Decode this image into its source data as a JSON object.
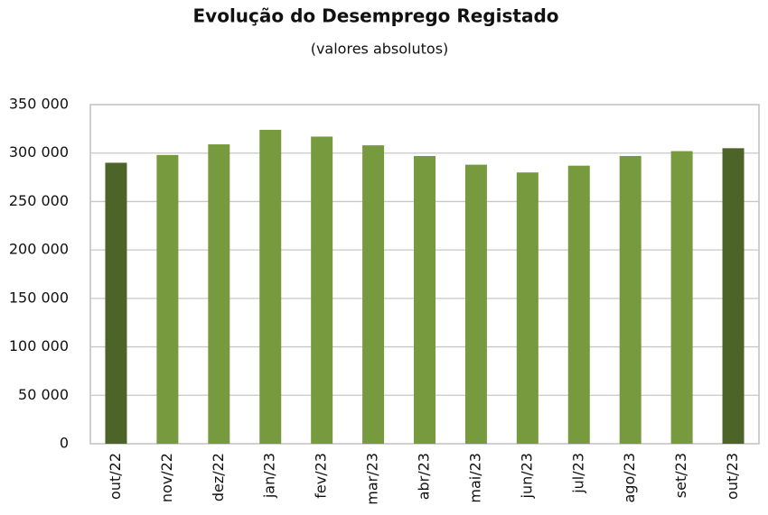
{
  "chart_data": {
    "type": "bar",
    "title": "Evolução do Desemprego Registado",
    "subtitle": "(valores absolutos)",
    "categories": [
      "out/22",
      "nov/22",
      "dez/22",
      "jan/23",
      "fev/23",
      "mar/23",
      "abr/23",
      "mai/23",
      "jun/23",
      "jul/23",
      "ago/23",
      "set/23",
      "out/23"
    ],
    "values": [
      290000,
      298000,
      309000,
      324000,
      317000,
      308000,
      297000,
      288000,
      280000,
      287000,
      297000,
      302000,
      305000
    ],
    "colors": [
      "#4d6428",
      "#779a3e",
      "#779a3e",
      "#779a3e",
      "#779a3e",
      "#779a3e",
      "#779a3e",
      "#779a3e",
      "#779a3e",
      "#779a3e",
      "#779a3e",
      "#779a3e",
      "#4d6428"
    ],
    "ylim": [
      0,
      350000
    ],
    "yticks": [
      0,
      {
        "value": 50000,
        "label": "50 000"
      },
      {
        "value": 100000,
        "label": "100 000"
      },
      {
        "value": 150000,
        "label": "150 000"
      },
      {
        "value": 200000,
        "label": "200 000"
      },
      {
        "value": 250000,
        "label": "250 000"
      },
      {
        "value": 300000,
        "label": "300 000"
      },
      {
        "value": 350000,
        "label": "350 000"
      }
    ],
    "grid": true
  }
}
